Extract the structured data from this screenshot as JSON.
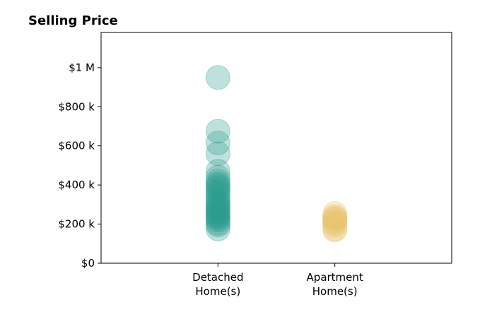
{
  "chart_data": {
    "type": "scatter",
    "title": "Selling Price",
    "xlabel": "",
    "ylabel": "",
    "ylim": [
      0,
      1180000
    ],
    "xlim": [
      0,
      3
    ],
    "grid": false,
    "y_ticks": [
      {
        "value": 0,
        "label": "$0"
      },
      {
        "value": 200000,
        "label": "$200 k"
      },
      {
        "value": 400000,
        "label": "$400 k"
      },
      {
        "value": 600000,
        "label": "$600 k"
      },
      {
        "value": 800000,
        "label": "$800 k"
      },
      {
        "value": 1000000,
        "label": "$1 M"
      }
    ],
    "categories": [
      {
        "position": 1,
        "label_lines": [
          "Detached",
          "Home(s)"
        ]
      },
      {
        "position": 2,
        "label_lines": [
          "Apartment",
          "Home(s)"
        ]
      }
    ],
    "series": [
      {
        "category": "Detached Home(s)",
        "color": "#2a9d8f",
        "values": [
          950000,
          675000,
          615000,
          560000,
          470000,
          440000,
          420000,
          405000,
          395000,
          385000,
          370000,
          360000,
          345000,
          330000,
          315000,
          305000,
          295000,
          285000,
          275000,
          265000,
          255000,
          245000,
          240000,
          230000,
          220000,
          205000,
          195000,
          175000
        ]
      },
      {
        "category": "Apartment Home(s)",
        "color": "#e9c46a",
        "values": [
          255000,
          240000,
          230000,
          225000,
          215000,
          205000,
          195000,
          175000,
          170000
        ]
      }
    ]
  }
}
